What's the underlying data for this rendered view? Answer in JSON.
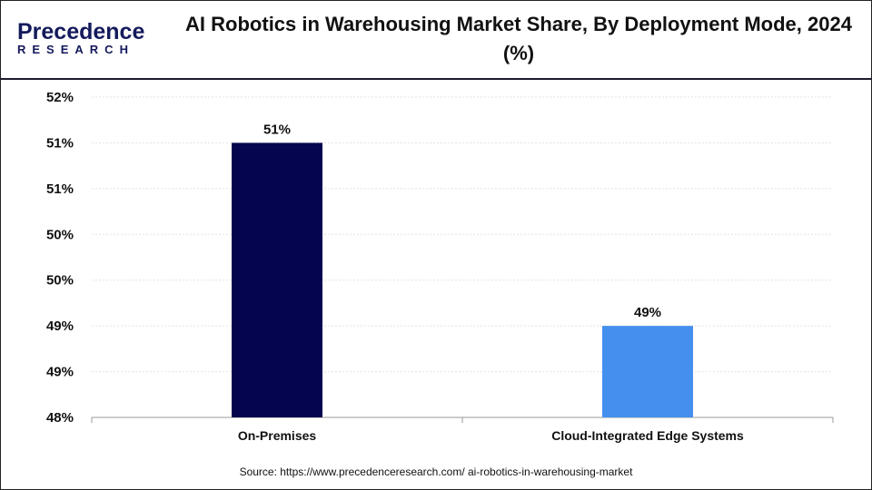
{
  "logo": {
    "line1": "Precedence",
    "line2": "RESEARCH"
  },
  "chart_data": {
    "type": "bar",
    "title": "AI Robotics in Warehousing Market Share, By Deployment Mode, 2024 (%)",
    "categories": [
      "On-Premises",
      "Cloud-Integrated Edge Systems"
    ],
    "values": [
      51,
      49
    ],
    "data_labels": [
      "51%",
      "49%"
    ],
    "colors": [
      "#05054f",
      "#4590ee"
    ],
    "ylim": [
      48,
      51.5
    ],
    "yticks": [
      48,
      48.5,
      49,
      49.5,
      50,
      50.5,
      51,
      51.5
    ],
    "ytick_labels": [
      "48%",
      "49%",
      "49%",
      "50%",
      "50%",
      "51%",
      "51%",
      "52%"
    ],
    "grid": true,
    "xlabel": "",
    "ylabel": ""
  },
  "source": "Source: https://www.precedenceresearch.com/ ai-robotics-in-warehousing-market"
}
